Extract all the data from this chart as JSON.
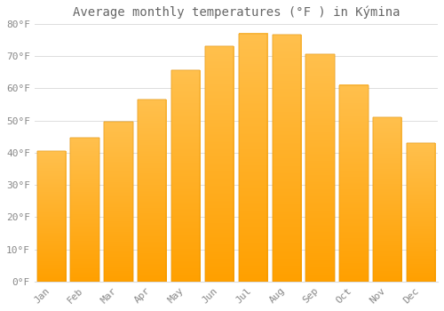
{
  "title": "Average monthly temperatures (°F ) in Kýmina",
  "months": [
    "Jan",
    "Feb",
    "Mar",
    "Apr",
    "May",
    "Jun",
    "Jul",
    "Aug",
    "Sep",
    "Oct",
    "Nov",
    "Dec"
  ],
  "values": [
    40.5,
    44.5,
    49.5,
    56.5,
    65.5,
    73,
    77,
    76.5,
    70.5,
    61,
    51,
    43
  ],
  "bar_color_top": "#FFC04D",
  "bar_color_bottom": "#FFA000",
  "bar_edge_color": "#E09000",
  "ylim": [
    0,
    80
  ],
  "yticks": [
    0,
    10,
    20,
    30,
    40,
    50,
    60,
    70,
    80
  ],
  "ytick_labels": [
    "0°F",
    "10°F",
    "20°F",
    "30°F",
    "40°F",
    "50°F",
    "60°F",
    "70°F",
    "80°F"
  ],
  "background_color": "#FFFFFF",
  "grid_color": "#DDDDDD",
  "title_fontsize": 10,
  "tick_fontsize": 8,
  "tick_color": "#888888",
  "bar_width": 0.85
}
